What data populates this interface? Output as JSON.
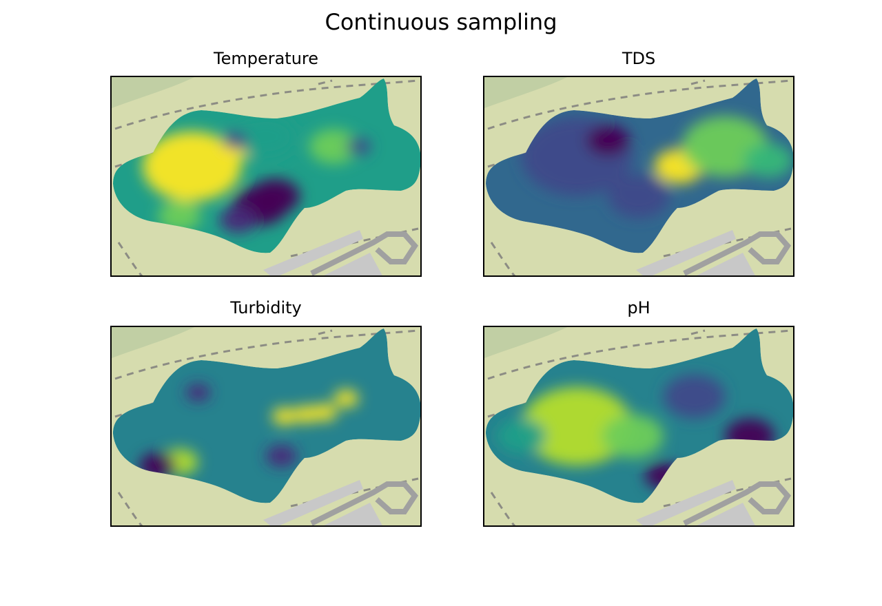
{
  "figure": {
    "title": "Continuous sampling"
  },
  "colors": {
    "map_ground": "#d6dcae",
    "map_road_dash": "#8c8c84",
    "map_building": "#c8c8c8",
    "map_path": "#a0a0a0",
    "map_park": "#b8c9a0",
    "colormap": "viridis"
  },
  "chart_data": [
    {
      "type": "heatmap",
      "title": "Temperature",
      "colormap": "viridis",
      "axes_ticks": false,
      "background": "map",
      "hotspots": [
        {
          "x": 0.26,
          "y": 0.45,
          "v": 1.0,
          "r": 0.16
        },
        {
          "x": 0.41,
          "y": 0.36,
          "v": 0.95,
          "r": 0.05
        },
        {
          "x": 0.22,
          "y": 0.7,
          "v": 0.8,
          "r": 0.07
        },
        {
          "x": 0.72,
          "y": 0.35,
          "v": 0.75,
          "r": 0.08
        },
        {
          "x": 0.5,
          "y": 0.3,
          "v": 0.5,
          "r": 0.1
        },
        {
          "x": 0.48,
          "y": 0.65,
          "v": 0.0,
          "r": 0.09
        },
        {
          "x": 0.53,
          "y": 0.6,
          "v": 0.05,
          "r": 0.08
        },
        {
          "x": 0.41,
          "y": 0.72,
          "v": 0.15,
          "r": 0.06
        },
        {
          "x": 0.8,
          "y": 0.35,
          "v": 0.2,
          "r": 0.04
        },
        {
          "x": 0.4,
          "y": 0.32,
          "v": 0.25,
          "r": 0.04
        }
      ],
      "base_value": 0.55
    },
    {
      "type": "heatmap",
      "title": "TDS",
      "colormap": "viridis",
      "axes_ticks": false,
      "background": "map",
      "hotspots": [
        {
          "x": 0.3,
          "y": 0.4,
          "v": 0.2,
          "r": 0.18
        },
        {
          "x": 0.4,
          "y": 0.32,
          "v": 0.02,
          "r": 0.07
        },
        {
          "x": 0.63,
          "y": 0.45,
          "v": 1.0,
          "r": 0.08
        },
        {
          "x": 0.78,
          "y": 0.35,
          "v": 0.8,
          "r": 0.14
        },
        {
          "x": 0.92,
          "y": 0.42,
          "v": 0.7,
          "r": 0.08
        },
        {
          "x": 0.5,
          "y": 0.6,
          "v": 0.25,
          "r": 0.1
        }
      ],
      "base_value": 0.35
    },
    {
      "type": "heatmap",
      "title": "Turbidity",
      "colormap": "viridis",
      "axes_ticks": false,
      "background": "map",
      "hotspots": [
        {
          "x": 0.56,
          "y": 0.45,
          "v": 1.0,
          "r": 0.04
        },
        {
          "x": 0.63,
          "y": 0.44,
          "v": 1.0,
          "r": 0.04
        },
        {
          "x": 0.69,
          "y": 0.43,
          "v": 1.0,
          "r": 0.04
        },
        {
          "x": 0.76,
          "y": 0.36,
          "v": 1.0,
          "r": 0.04
        },
        {
          "x": 0.22,
          "y": 0.68,
          "v": 0.85,
          "r": 0.06
        },
        {
          "x": 0.15,
          "y": 0.7,
          "v": 0.05,
          "r": 0.06
        },
        {
          "x": 0.28,
          "y": 0.33,
          "v": 0.1,
          "r": 0.04
        },
        {
          "x": 0.55,
          "y": 0.65,
          "v": 0.15,
          "r": 0.05
        }
      ],
      "base_value": 0.4
    },
    {
      "type": "heatmap",
      "title": "pH",
      "colormap": "viridis",
      "axes_ticks": false,
      "background": "map",
      "hotspots": [
        {
          "x": 0.3,
          "y": 0.5,
          "v": 0.85,
          "r": 0.18
        },
        {
          "x": 0.48,
          "y": 0.55,
          "v": 0.8,
          "r": 0.1
        },
        {
          "x": 0.68,
          "y": 0.35,
          "v": 0.2,
          "r": 0.1
        },
        {
          "x": 0.86,
          "y": 0.55,
          "v": 0.05,
          "r": 0.08
        },
        {
          "x": 0.58,
          "y": 0.75,
          "v": 0.0,
          "r": 0.06
        },
        {
          "x": 0.12,
          "y": 0.55,
          "v": 0.5,
          "r": 0.08
        }
      ],
      "base_value": 0.4
    }
  ]
}
